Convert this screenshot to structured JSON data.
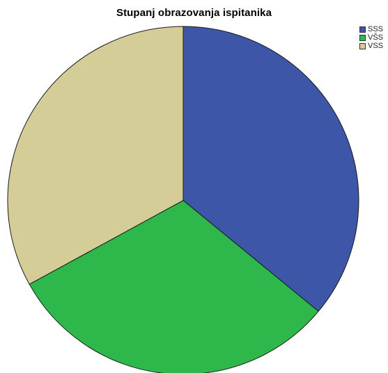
{
  "chart_data": {
    "type": "pie",
    "title": "Stupanj obrazovanja ispitanika",
    "categories": [
      "SSS",
      "VŠS",
      "VSS"
    ],
    "values": [
      36,
      31,
      33
    ],
    "colors": [
      "#3d56a8",
      "#2eb74a",
      "#d4cd98"
    ],
    "start_angle_deg": 0,
    "direction": "clockwise",
    "legend_position": "top-right",
    "legend": [
      {
        "label": "SSS",
        "color": "#3d56a8"
      },
      {
        "label": "VŠS",
        "color": "#2eb74a"
      },
      {
        "label": "VSS",
        "color": "#d4cd98"
      }
    ]
  }
}
